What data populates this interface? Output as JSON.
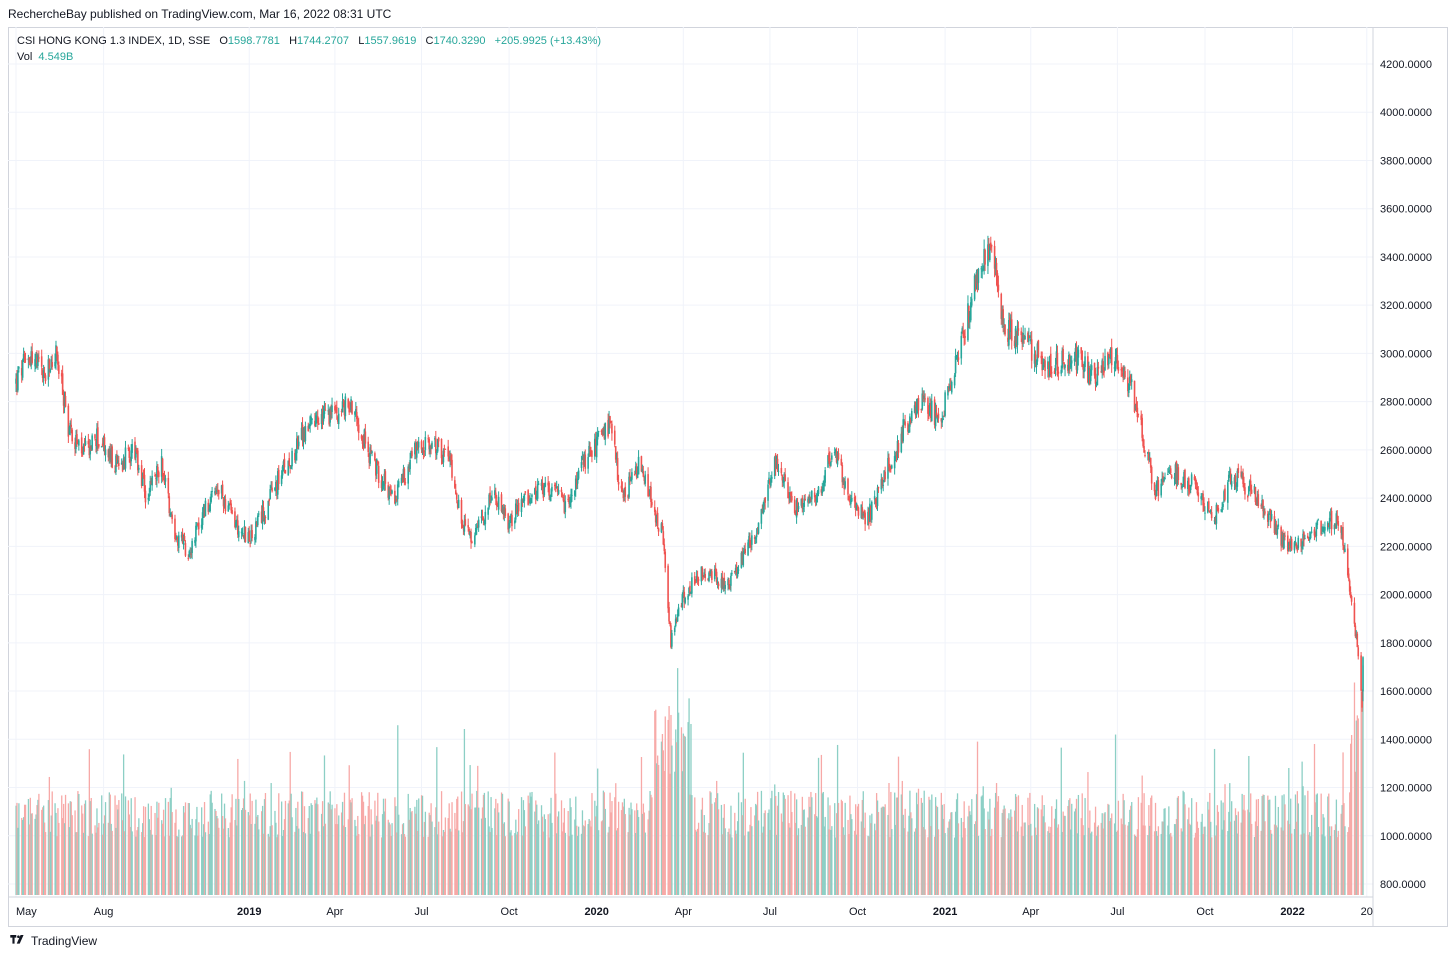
{
  "publisher": "RechercheBay published on TradingView.com, Mar 16, 2022 08:31 UTC",
  "legend": {
    "symbol": "CSI HONG KONG 1.3 INDEX, 1D, SSE",
    "o_label": "O",
    "o_value": "1598.7781",
    "h_label": "H",
    "h_value": "1744.2707",
    "l_label": "L",
    "l_value": "1557.9619",
    "c_label": "C",
    "c_value": "1740.3290",
    "change": "+205.9925 (+13.43%)",
    "vol_label": "Vol",
    "vol_value": "4.549B"
  },
  "brand": "TradingView",
  "colors": {
    "up": "#26a69a",
    "down": "#ef5350",
    "up_vol": "#8ccfc5",
    "down_vol": "#f7a9a7",
    "grid": "#f0f3fa",
    "text": "#131722"
  },
  "chart_data": {
    "type": "candlestick",
    "title": "CSI HONG KONG 1.3 INDEX, 1D, SSE",
    "price_axis_ticks": [
      "800.0000",
      "1000.0000",
      "1200.0000",
      "1400.0000",
      "1600.0000",
      "1800.0000",
      "2000.0000",
      "2200.0000",
      "2400.0000",
      "2600.0000",
      "2800.0000",
      "3000.0000",
      "3200.0000",
      "3400.0000",
      "3600.0000",
      "3800.0000",
      "4000.0000",
      "4200.0000"
    ],
    "ylim": [
      700,
      4300
    ],
    "time_axis_ticks": [
      {
        "label": "May",
        "bold": false
      },
      {
        "label": "Aug",
        "bold": false
      },
      {
        "label": "2019",
        "bold": true
      },
      {
        "label": "Apr",
        "bold": false
      },
      {
        "label": "Jul",
        "bold": false
      },
      {
        "label": "Oct",
        "bold": false
      },
      {
        "label": "2020",
        "bold": true
      },
      {
        "label": "Apr",
        "bold": false
      },
      {
        "label": "Jul",
        "bold": false
      },
      {
        "label": "Oct",
        "bold": false
      },
      {
        "label": "2021",
        "bold": true
      },
      {
        "label": "Apr",
        "bold": false
      },
      {
        "label": "Jul",
        "bold": false
      },
      {
        "label": "Oct",
        "bold": false
      },
      {
        "label": "2022",
        "bold": true
      },
      {
        "label": "20",
        "bold": false
      }
    ],
    "time_axis_dates": [
      "2018-05",
      "2018-08",
      "2019-01",
      "2019-04",
      "2019-07",
      "2019-10",
      "2020-01",
      "2020-04",
      "2020-07",
      "2020-10",
      "2021-01",
      "2021-04",
      "2021-07",
      "2021-10",
      "2022-01",
      "2022-03-20"
    ],
    "xlim": [
      "2018-05-01",
      "2022-03-16"
    ],
    "close_path": [
      {
        "date": "2018-05-01",
        "close": 2880
      },
      {
        "date": "2018-05-15",
        "close": 3000
      },
      {
        "date": "2018-06-01",
        "close": 2900
      },
      {
        "date": "2018-06-12",
        "close": 3000
      },
      {
        "date": "2018-06-25",
        "close": 2700
      },
      {
        "date": "2018-07-10",
        "close": 2580
      },
      {
        "date": "2018-07-25",
        "close": 2650
      },
      {
        "date": "2018-08-15",
        "close": 2530
      },
      {
        "date": "2018-09-01",
        "close": 2600
      },
      {
        "date": "2018-09-15",
        "close": 2400
      },
      {
        "date": "2018-10-01",
        "close": 2550
      },
      {
        "date": "2018-10-15",
        "close": 2250
      },
      {
        "date": "2018-10-30",
        "close": 2180
      },
      {
        "date": "2018-11-15",
        "close": 2350
      },
      {
        "date": "2018-12-01",
        "close": 2430
      },
      {
        "date": "2018-12-20",
        "close": 2280
      },
      {
        "date": "2019-01-03",
        "close": 2230
      },
      {
        "date": "2019-02-01",
        "close": 2480
      },
      {
        "date": "2019-03-01",
        "close": 2680
      },
      {
        "date": "2019-04-01",
        "close": 2760
      },
      {
        "date": "2019-04-20",
        "close": 2790
      },
      {
        "date": "2019-05-08",
        "close": 2570
      },
      {
        "date": "2019-06-01",
        "close": 2400
      },
      {
        "date": "2019-06-25",
        "close": 2600
      },
      {
        "date": "2019-07-15",
        "close": 2620
      },
      {
        "date": "2019-08-01",
        "close": 2550
      },
      {
        "date": "2019-08-13",
        "close": 2280
      },
      {
        "date": "2019-08-25",
        "close": 2220
      },
      {
        "date": "2019-09-12",
        "close": 2420
      },
      {
        "date": "2019-10-01",
        "close": 2300
      },
      {
        "date": "2019-10-20",
        "close": 2410
      },
      {
        "date": "2019-11-15",
        "close": 2430
      },
      {
        "date": "2019-12-01",
        "close": 2360
      },
      {
        "date": "2019-12-20",
        "close": 2560
      },
      {
        "date": "2020-01-15",
        "close": 2700
      },
      {
        "date": "2020-01-28",
        "close": 2390
      },
      {
        "date": "2020-02-15",
        "close": 2540
      },
      {
        "date": "2020-02-28",
        "close": 2380
      },
      {
        "date": "2020-03-10",
        "close": 2250
      },
      {
        "date": "2020-03-19",
        "close": 1800
      },
      {
        "date": "2020-04-01",
        "close": 1990
      },
      {
        "date": "2020-04-20",
        "close": 2100
      },
      {
        "date": "2020-05-20",
        "close": 2040
      },
      {
        "date": "2020-06-20",
        "close": 2300
      },
      {
        "date": "2020-07-08",
        "close": 2560
      },
      {
        "date": "2020-07-25",
        "close": 2360
      },
      {
        "date": "2020-08-20",
        "close": 2400
      },
      {
        "date": "2020-09-05",
        "close": 2600
      },
      {
        "date": "2020-09-25",
        "close": 2400
      },
      {
        "date": "2020-10-10",
        "close": 2300
      },
      {
        "date": "2020-10-25",
        "close": 2450
      },
      {
        "date": "2020-11-20",
        "close": 2700
      },
      {
        "date": "2020-12-05",
        "close": 2800
      },
      {
        "date": "2020-12-28",
        "close": 2730
      },
      {
        "date": "2021-01-15",
        "close": 3000
      },
      {
        "date": "2021-02-01",
        "close": 3280
      },
      {
        "date": "2021-02-18",
        "close": 3460
      },
      {
        "date": "2021-03-05",
        "close": 3100
      },
      {
        "date": "2021-03-25",
        "close": 3050
      },
      {
        "date": "2021-04-20",
        "close": 2950
      },
      {
        "date": "2021-05-20",
        "close": 2980
      },
      {
        "date": "2021-06-05",
        "close": 2900
      },
      {
        "date": "2021-06-25",
        "close": 3000
      },
      {
        "date": "2021-07-15",
        "close": 2870
      },
      {
        "date": "2021-07-28",
        "close": 2650
      },
      {
        "date": "2021-08-10",
        "close": 2420
      },
      {
        "date": "2021-08-30",
        "close": 2500
      },
      {
        "date": "2021-09-20",
        "close": 2450
      },
      {
        "date": "2021-10-10",
        "close": 2300
      },
      {
        "date": "2021-10-28",
        "close": 2500
      },
      {
        "date": "2021-11-20",
        "close": 2430
      },
      {
        "date": "2021-12-10",
        "close": 2300
      },
      {
        "date": "2021-12-28",
        "close": 2180
      },
      {
        "date": "2022-01-15",
        "close": 2230
      },
      {
        "date": "2022-02-05",
        "close": 2300
      },
      {
        "date": "2022-02-20",
        "close": 2300
      },
      {
        "date": "2022-03-01",
        "close": 2080
      },
      {
        "date": "2022-03-08",
        "close": 1850
      },
      {
        "date": "2022-03-15",
        "close": 1534
      },
      {
        "date": "2022-03-16",
        "close": 1740
      }
    ],
    "volume_scale_note": "volume bars share the lower part of the pane; latest bar 4.549B",
    "grid": true,
    "legend": "top-left"
  }
}
